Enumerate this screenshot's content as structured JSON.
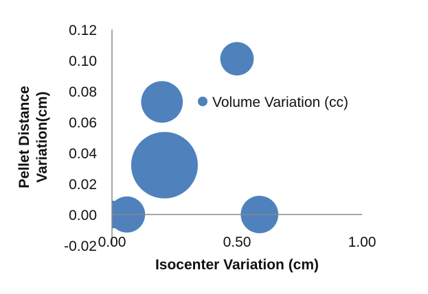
{
  "chart_data": {
    "type": "scatter",
    "subtype": "bubble",
    "xlabel": "Isocenter Variation (cm)",
    "ylabel_lines": [
      "Pellet Distance",
      "Variation(cm)"
    ],
    "xlim": [
      0,
      1.0
    ],
    "ylim": [
      -0.02,
      0.12
    ],
    "xticks": [
      "0.00",
      "0.50",
      "1.00"
    ],
    "xtick_values": [
      0,
      0.5,
      1.0
    ],
    "yticks": [
      "0.12",
      "0.10",
      "0.08",
      "0.06",
      "0.04",
      "0.02",
      "0.00",
      "-0.02"
    ],
    "ytick_values": [
      0.12,
      0.1,
      0.08,
      0.06,
      0.04,
      0.02,
      0.0,
      -0.02
    ],
    "grid": false,
    "legend": {
      "position": "right",
      "entries": [
        "Volume Variation (cc)"
      ]
    },
    "color": "#4f81bd",
    "series": [
      {
        "name": "Volume Variation (cc)",
        "points": [
          {
            "x": 0.5,
            "y": 0.101,
            "size": 0.58
          },
          {
            "x": 0.2,
            "y": 0.073,
            "size": 0.9
          },
          {
            "x": 0.21,
            "y": 0.032,
            "size": 2.3
          },
          {
            "x": 0.06,
            "y": 0.0,
            "size": 0.68
          },
          {
            "x": 0.0,
            "y": 0.0,
            "size": 0.4
          },
          {
            "x": 0.59,
            "y": 0.0,
            "size": 0.73
          }
        ]
      }
    ]
  }
}
